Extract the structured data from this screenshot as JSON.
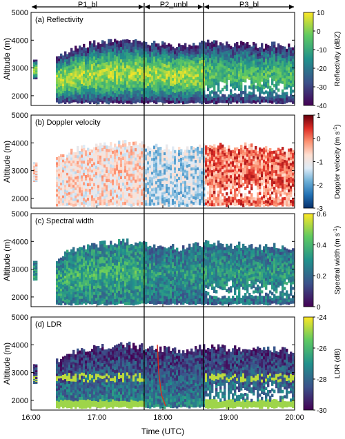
{
  "chart_data": {
    "type": "heatmap",
    "periods": [
      {
        "label": "P1_bl",
        "start": "16:00",
        "end": "17:43"
      },
      {
        "label": "P2_unbl",
        "start": "17:43",
        "end": "18:37"
      },
      {
        "label": "P3_bl",
        "start": "18:37",
        "end": "20:00"
      }
    ],
    "x_axis": {
      "label": "Time (UTC)",
      "range": [
        "16:00",
        "20:00"
      ],
      "ticks": [
        "16:00",
        "17:00",
        "18:00",
        "19:00",
        "20:00"
      ]
    },
    "y_axis": {
      "label": "Altitude (m)",
      "range": [
        1650,
        5000
      ],
      "ticks": [
        "2000",
        "3000",
        "4000",
        "5000"
      ]
    },
    "panels": [
      {
        "title": "(a) Reflectivity",
        "variable": "reflectivity",
        "colorbar_label": "Reflectivity (dBZ)",
        "colorbar_ticks": [
          "10",
          "0",
          "-10",
          "-20",
          "-30",
          "-40"
        ],
        "range": [
          -40,
          10
        ],
        "colormap": [
          "#440154",
          "#3b528b",
          "#21918c",
          "#5ec962",
          "#fde725"
        ]
      },
      {
        "title": "(b) Doppler velocity",
        "variable": "doppler_velocity",
        "colorbar_label": "Doppler velocity (m s",
        "colorbar_label_sup": "-1",
        "colorbar_label_end": ")",
        "colorbar_ticks": [
          "1",
          "0",
          "-1",
          "-2",
          "-3"
        ],
        "range": [
          -3,
          1
        ],
        "colormap": [
          "#08306b",
          "#2171b5",
          "#6baed6",
          "#deebf7",
          "#fee0d2",
          "#fc9272",
          "#de2d26",
          "#67000d"
        ]
      },
      {
        "title": "(c) Spectral width",
        "variable": "spectral_width",
        "colorbar_label": "Spectral width (m s",
        "colorbar_label_sup": "-1",
        "colorbar_label_end": ")",
        "colorbar_ticks": [
          "0.6",
          "0.4",
          "0.2",
          "0"
        ],
        "range": [
          0,
          0.6
        ],
        "colormap": [
          "#440154",
          "#3b528b",
          "#21918c",
          "#5ec962",
          "#fde725"
        ]
      },
      {
        "title": "(d) LDR",
        "variable": "ldr",
        "colorbar_label": "LDR (dB)",
        "colorbar_ticks": [
          "-24",
          "-26",
          "-28",
          "-30"
        ],
        "range": [
          -30,
          -24
        ],
        "colormap": [
          "#440154",
          "#3b528b",
          "#21918c",
          "#5ec962",
          "#fde725"
        ]
      }
    ],
    "echo_top_profile": [
      [
        "16:22",
        3400
      ],
      [
        "16:30",
        3550
      ],
      [
        "16:40",
        3750
      ],
      [
        "16:50",
        3850
      ],
      [
        "17:00",
        3900
      ],
      [
        "17:15",
        3950
      ],
      [
        "17:30",
        4000
      ],
      [
        "17:45",
        3900
      ],
      [
        "18:00",
        3850
      ],
      [
        "18:15",
        3750
      ],
      [
        "18:30",
        3900
      ],
      [
        "18:45",
        3950
      ],
      [
        "19:00",
        3850
      ],
      [
        "19:15",
        3900
      ],
      [
        "19:30",
        3800
      ],
      [
        "19:45",
        3850
      ],
      [
        "20:00",
        3700
      ]
    ]
  }
}
